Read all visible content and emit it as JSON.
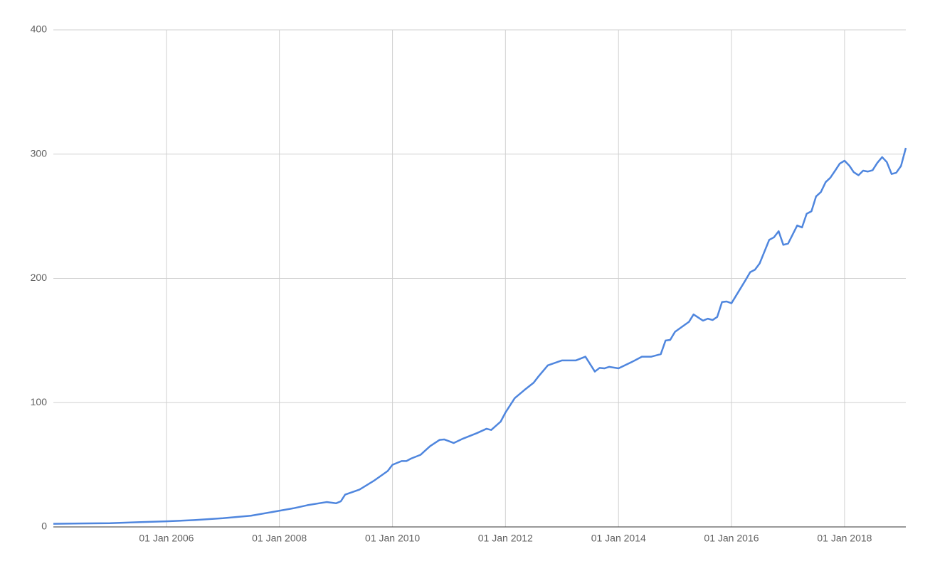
{
  "chart_data": {
    "type": "line",
    "x": [
      "2004-01-01",
      "2004-07-01",
      "2005-01-01",
      "2005-07-01",
      "2006-01-01",
      "2006-07-01",
      "2007-01-01",
      "2007-07-01",
      "2008-01-01",
      "2008-04-01",
      "2008-07-01",
      "2008-11-01",
      "2009-01-01",
      "2009-02-01",
      "2009-03-01",
      "2009-06-01",
      "2009-09-01",
      "2009-12-01",
      "2010-01-01",
      "2010-03-01",
      "2010-04-01",
      "2010-05-01",
      "2010-07-01",
      "2010-09-01",
      "2010-11-01",
      "2010-12-01",
      "2011-01-01",
      "2011-02-01",
      "2011-04-01",
      "2011-07-01",
      "2011-09-01",
      "2011-10-01",
      "2011-12-01",
      "2012-01-01",
      "2012-03-01",
      "2012-05-01",
      "2012-07-01",
      "2012-08-01",
      "2012-10-01",
      "2013-01-01",
      "2013-04-01",
      "2013-06-01",
      "2013-08-01",
      "2013-09-01",
      "2013-10-01",
      "2013-11-01",
      "2014-01-01",
      "2014-04-01",
      "2014-06-01",
      "2014-08-01",
      "2014-10-01",
      "2014-11-01",
      "2014-12-01",
      "2015-01-01",
      "2015-04-01",
      "2015-05-01",
      "2015-07-01",
      "2015-08-01",
      "2015-09-01",
      "2015-10-01",
      "2015-11-01",
      "2015-12-01",
      "2016-01-01",
      "2016-04-01",
      "2016-05-01",
      "2016-06-01",
      "2016-07-01",
      "2016-09-01",
      "2016-10-01",
      "2016-11-01",
      "2016-12-01",
      "2017-01-01",
      "2017-03-01",
      "2017-04-01",
      "2017-05-01",
      "2017-06-01",
      "2017-07-01",
      "2017-08-01",
      "2017-09-01",
      "2017-10-01",
      "2017-11-01",
      "2017-12-01",
      "2018-01-01",
      "2018-02-01",
      "2018-03-01",
      "2018-04-01",
      "2018-05-01",
      "2018-06-01",
      "2018-07-01",
      "2018-08-01",
      "2018-09-01",
      "2018-10-01",
      "2018-11-01",
      "2018-12-01",
      "2019-01-01",
      "2019-02-01"
    ],
    "series": [
      {
        "color": "#4f86de",
        "values": [
          2.5,
          2.8,
          3,
          3.8,
          4.5,
          5.5,
          7,
          9,
          13,
          15,
          17.5,
          20,
          19,
          20.6,
          26,
          30,
          37,
          45,
          50,
          53,
          53,
          55,
          58,
          65,
          70,
          70.4,
          69,
          67.5,
          71,
          75.5,
          79,
          78,
          84.7,
          92,
          103.6,
          110,
          116,
          121,
          130,
          134,
          134,
          137,
          125,
          128,
          127.6,
          128.8,
          127.6,
          133,
          137,
          137,
          139,
          150,
          150.5,
          157,
          165,
          171,
          166,
          167.6,
          166.5,
          169,
          181,
          181.4,
          180,
          198.6,
          205,
          207,
          212,
          231,
          233,
          238,
          227,
          228,
          242.6,
          241,
          252,
          254,
          266,
          269.5,
          277.5,
          281,
          286.7,
          292.4,
          294.7,
          290.7,
          285.5,
          283,
          286.7,
          286,
          287,
          293,
          297.6,
          293.6,
          284,
          285,
          290.5,
          305
        ]
      }
    ],
    "xlim": [
      "2004-01-01",
      "2019-02-01"
    ],
    "xticks": [
      {
        "value": "2006-01-01",
        "label": "01 Jan 2006"
      },
      {
        "value": "2008-01-01",
        "label": "01 Jan 2008"
      },
      {
        "value": "2010-01-01",
        "label": "01 Jan 2010"
      },
      {
        "value": "2012-01-01",
        "label": "01 Jan 2012"
      },
      {
        "value": "2014-01-01",
        "label": "01 Jan 2014"
      },
      {
        "value": "2016-01-01",
        "label": "01 Jan 2016"
      },
      {
        "value": "2018-01-01",
        "label": "01 Jan 2018"
      }
    ],
    "ylim": [
      0,
      400
    ],
    "yticks": [
      0,
      100,
      200,
      300,
      400
    ],
    "grid": true
  }
}
